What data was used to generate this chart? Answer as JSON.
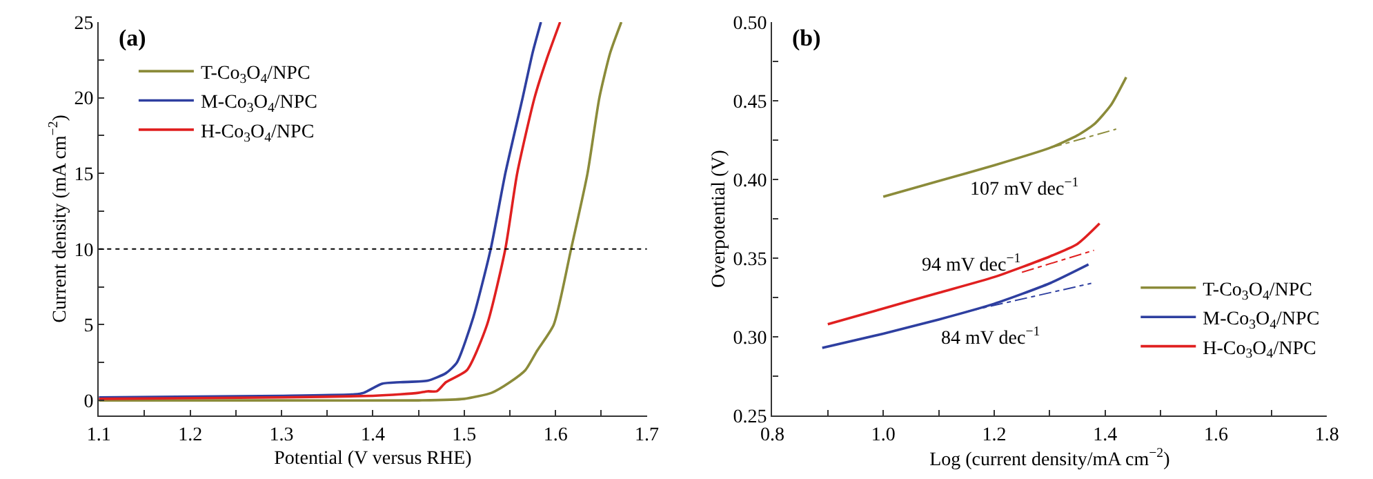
{
  "chart_data": [
    {
      "type": "line",
      "title": "(a)",
      "xlabel": "Potential (V versus RHE)",
      "ylabel": "Current density (mA cm$^{−2}$)",
      "xlim": [
        1.1,
        1.7
      ],
      "xticks": [
        1.1,
        {
          "value": 1.15,
          "label": null
        },
        1.2,
        {
          "value": 1.25,
          "label": null
        },
        1.3,
        {
          "value": 1.35,
          "label": null
        },
        1.4,
        {
          "value": 1.45,
          "label": null
        },
        1.5,
        {
          "value": 1.55,
          "label": null
        },
        1.6,
        {
          "value": 1.65,
          "label": null
        },
        1.7
      ],
      "ylim": [
        -1,
        25
      ],
      "yticks": [
        0,
        {
          "value": 2.5,
          "label": null
        },
        5,
        {
          "value": 7.5,
          "label": null
        },
        10,
        {
          "value": 12.5,
          "label": null
        },
        15,
        {
          "value": 17.5,
          "label": null
        },
        20,
        {
          "value": 22.5,
          "label": null
        },
        25
      ],
      "legend": "top left",
      "marker": "none",
      "line_style": "solid",
      "ref_lines": [
        {
          "axis": "y",
          "value": 10,
          "line_style": "dotted",
          "color": "#000000"
        }
      ],
      "series": [
        {
          "name": "T-Co$_{3}$O$_{4}$/NPC",
          "color": "#8b8b3a",
          "x": [
            1.1,
            1.3,
            1.45,
            1.5,
            1.53,
            1.55,
            1.567,
            1.58,
            1.598,
            1.617,
            1.635,
            1.648,
            1.66,
            1.672
          ],
          "values": [
            0,
            0,
            0,
            0.1,
            0.5,
            1.2,
            2,
            3.3,
            5,
            10,
            15,
            20,
            23,
            25
          ]
        },
        {
          "name": "M-Co$_{3}$O$_{4}$/NPC",
          "color": "#2e3fa0",
          "x": [
            1.1,
            1.3,
            1.38,
            1.39,
            1.41,
            1.43,
            1.46,
            1.48,
            1.492,
            1.51,
            1.529,
            1.545,
            1.564,
            1.575,
            1.584
          ],
          "values": [
            0.2,
            0.3,
            0.4,
            0.5,
            1.1,
            1.2,
            1.3,
            1.8,
            2.5,
            5.5,
            10,
            15,
            20,
            23,
            25
          ]
        },
        {
          "name": "H-Co$_{3}$O$_{4}$/NPC",
          "color": "#e02020",
          "x": [
            1.1,
            1.3,
            1.4,
            1.43,
            1.45,
            1.46,
            1.47,
            1.48,
            1.503,
            1.525,
            1.545,
            1.558,
            1.577,
            1.59,
            1.605
          ],
          "values": [
            0.1,
            0.2,
            0.3,
            0.4,
            0.5,
            0.6,
            0.6,
            1.2,
            2,
            5,
            10,
            15,
            20,
            22.5,
            25
          ]
        }
      ]
    },
    {
      "type": "line",
      "title": "(b)",
      "xlabel": "Log (current density/mA cm$^{−2}$)",
      "ylabel": "Overpotential (V)",
      "xlim": [
        0.8,
        1.8
      ],
      "xticks": [
        {
          "value": 0.8,
          "label": "0.8"
        },
        {
          "value": 0.9,
          "label": null
        },
        {
          "value": 1.0,
          "label": "1.0"
        },
        {
          "value": 1.1,
          "label": null
        },
        {
          "value": 1.2,
          "label": "1.2"
        },
        {
          "value": 1.3,
          "label": null
        },
        {
          "value": 1.4,
          "label": "1.4"
        },
        {
          "value": 1.5,
          "label": null
        },
        {
          "value": 1.6,
          "label": "1.6"
        },
        {
          "value": 1.7,
          "label": null
        },
        {
          "value": 1.8,
          "label": "1.8"
        }
      ],
      "ylim": [
        0.25,
        0.5
      ],
      "yticks": [
        {
          "value": 0.25,
          "label": "0.25"
        },
        {
          "value": 0.275,
          "label": null
        },
        {
          "value": 0.3,
          "label": "0.30"
        },
        {
          "value": 0.325,
          "label": null
        },
        {
          "value": 0.35,
          "label": "0.35"
        },
        {
          "value": 0.375,
          "label": null
        },
        {
          "value": 0.4,
          "label": "0.40"
        },
        {
          "value": 0.425,
          "label": null
        },
        {
          "value": 0.45,
          "label": "0.45"
        },
        {
          "value": 0.475,
          "label": null
        },
        {
          "value": 0.5,
          "label": "0.50"
        }
      ],
      "legend": "bottom right",
      "marker": "none",
      "line_style": "solid",
      "annotations": [
        "107 mV dec$^{−1}$",
        "94 mV dec$^{−1}$",
        "84 mV dec$^{−1}$"
      ],
      "series": [
        {
          "name": "T-Co$_{3}$O$_{4}$/NPC",
          "color": "#8b8b3a",
          "x": [
            1.0,
            1.1,
            1.2,
            1.3,
            1.35,
            1.38,
            1.41,
            1.438
          ],
          "values": [
            0.389,
            0.399,
            0.409,
            0.42,
            0.428,
            0.435,
            0.447,
            0.465
          ]
        },
        {
          "name": "M-Co$_{3}$O$_{4}$/NPC",
          "color": "#2e3fa0",
          "x": [
            0.89,
            1.0,
            1.1,
            1.2,
            1.3,
            1.37
          ],
          "values": [
            0.293,
            0.302,
            0.311,
            0.321,
            0.334,
            0.346
          ]
        },
        {
          "name": "H-Co$_{3}$O$_{4}$/NPC",
          "color": "#e02020",
          "x": [
            0.9,
            1.0,
            1.1,
            1.2,
            1.3,
            1.35,
            1.39
          ],
          "values": [
            0.308,
            0.318,
            0.328,
            0.338,
            0.351,
            0.359,
            0.372
          ]
        },
        {
          "color": "#8b8b3a",
          "line_style": "dashdot",
          "x": [
            1.3,
            1.42
          ],
          "values": [
            0.42,
            0.432
          ]
        },
        {
          "color": "#2e3fa0",
          "line_style": "dashdot",
          "x": [
            1.15,
            1.375
          ],
          "values": [
            0.316,
            0.334
          ]
        },
        {
          "color": "#e02020",
          "line_style": "dashdot",
          "x": [
            1.25,
            1.38
          ],
          "values": [
            0.341,
            0.355
          ]
        }
      ]
    }
  ]
}
